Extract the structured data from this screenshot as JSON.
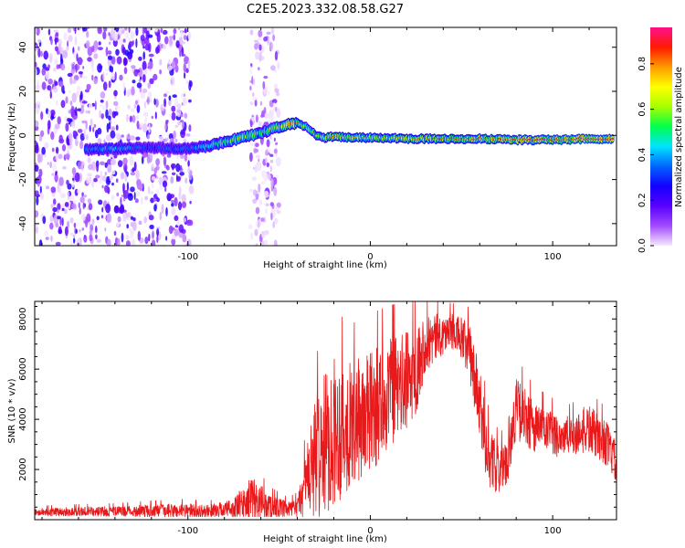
{
  "figure": {
    "title": "C2E5.2023.332.08.58.G27"
  },
  "chart_data": [
    {
      "type": "heatmap",
      "xlabel": "Height of straight line (km)",
      "ylabel": "Frequency (Hz)",
      "xlim": [
        -184,
        135
      ],
      "ylim": [
        -50,
        49
      ],
      "x_ticks": [
        -100,
        0,
        100
      ],
      "y_ticks": [
        -40,
        -20,
        0,
        20,
        40
      ],
      "ridge": {
        "x": [
          -156,
          -140,
          -120,
          -100,
          -90,
          -80,
          -70,
          -60,
          -50,
          -45,
          -40,
          -35,
          -30,
          -25,
          -20,
          -10,
          0,
          20,
          40,
          60,
          80,
          100,
          120,
          133
        ],
        "y": [
          -6.5,
          -6,
          -5.5,
          -6,
          -5,
          -3,
          -1,
          1,
          4,
          5,
          5.5,
          4,
          0,
          -1,
          -0.5,
          -1,
          -1,
          -1.5,
          -1.5,
          -1.5,
          -2,
          -2,
          -1.5,
          -1.5
        ],
        "amplitude": [
          0.35,
          0.4,
          0.3,
          0.35,
          0.45,
          0.55,
          0.6,
          0.55,
          0.6,
          0.75,
          0.8,
          0.6,
          0.65,
          0.7,
          0.8,
          0.75,
          0.7,
          0.75,
          0.8,
          0.82,
          0.85,
          0.9,
          0.92,
          0.9
        ]
      },
      "colorbar": {
        "label": "Normalized spectral amplitude",
        "range": [
          0,
          0.96
        ],
        "ticks": [
          "0.0",
          "0.2",
          "0.4",
          "0.6",
          "0.8"
        ],
        "colors": [
          "#f6e9ff",
          "#a24bff",
          "#5a00ff",
          "#1400ff",
          "#0066ff",
          "#00e4ff",
          "#00ff4c",
          "#a6ff00",
          "#ffff00",
          "#ff9a00",
          "#ff1a00",
          "#ff0f8b"
        ]
      },
      "noise_regions": [
        {
          "x_from": -184,
          "x_to": -98,
          "level": "strong"
        },
        {
          "x_from": -66,
          "x_to": -50,
          "level": "weak"
        }
      ]
    },
    {
      "type": "line",
      "xlabel": "Height of straight line (km)",
      "ylabel": "SNR (10 * v/v)",
      "xlim": [
        -184,
        135
      ],
      "ylim": [
        0,
        8700
      ],
      "x_ticks": [
        -100,
        0,
        100
      ],
      "y_ticks": [
        2000,
        4000,
        6000,
        8000
      ],
      "color": "#e8191b",
      "envelope": {
        "x": [
          -184,
          -160,
          -140,
          -120,
          -100,
          -90,
          -82,
          -75,
          -70,
          -65,
          -60,
          -55,
          -45,
          -40,
          -35,
          -30,
          -25,
          -20,
          -10,
          0,
          10,
          20,
          25,
          30,
          40,
          45,
          50,
          55,
          60,
          62,
          65,
          70,
          75,
          80,
          85,
          90,
          100,
          110,
          115,
          120,
          125,
          130,
          135
        ],
        "mean": [
          300,
          320,
          330,
          350,
          350,
          320,
          400,
          450,
          600,
          800,
          700,
          500,
          400,
          450,
          1500,
          2500,
          3000,
          3500,
          3800,
          4200,
          5000,
          5500,
          6000,
          7000,
          7400,
          7500,
          7200,
          6500,
          4500,
          3500,
          2500,
          2000,
          2200,
          4500,
          4000,
          3700,
          3400,
          3300,
          3500,
          3600,
          3300,
          3000,
          2200
        ],
        "spread": [
          150,
          180,
          200,
          250,
          300,
          250,
          300,
          400,
          700,
          900,
          700,
          500,
          300,
          400,
          1400,
          2500,
          2800,
          3000,
          2500,
          2500,
          2200,
          2000,
          1800,
          1200,
          800,
          700,
          900,
          1200,
          1500,
          1500,
          1200,
          1000,
          800,
          1200,
          1200,
          1000,
          900,
          800,
          900,
          1000,
          900,
          900,
          800
        ]
      }
    }
  ]
}
